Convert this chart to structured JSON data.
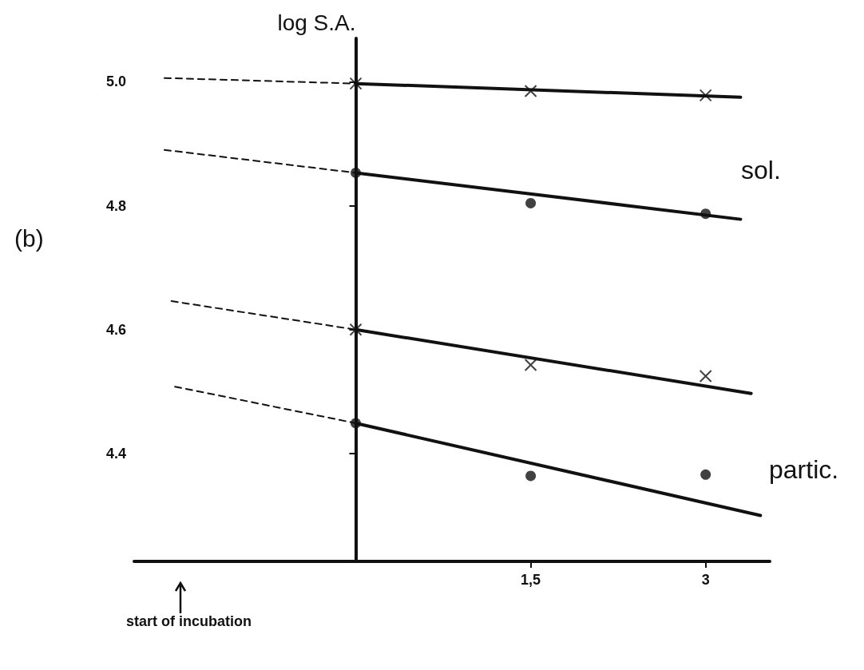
{
  "chart_data": {
    "type": "line",
    "ylabel": "log S.A.",
    "xlim": [
      -1.9,
      3.55
    ],
    "ylim": [
      4.226,
      5.07
    ],
    "xticks": [
      {
        "value": 1.5,
        "label": "1,5"
      },
      3
    ],
    "yticks": [
      4.4,
      4.6,
      4.8,
      {
        "value": 5,
        "label": "5.0"
      }
    ],
    "grid": false,
    "annotations": [
      "(b)",
      "sol.",
      "partic.",
      "start of incubation"
    ],
    "series": [
      {
        "type": "scatter",
        "marker": "cross",
        "color": "#111111",
        "x": [
          0,
          1.5,
          3
        ],
        "values": [
          4.997,
          4.985,
          4.978
        ]
      },
      {
        "marker": "none",
        "line_style": "solid",
        "color": "#111111",
        "x": [
          0,
          3.3
        ],
        "values": [
          4.997,
          4.975
        ]
      },
      {
        "marker": "none",
        "line_style": "dashed",
        "color": "#111111",
        "x": [
          -1.64,
          0
        ],
        "values": [
          5.006,
          4.997
        ]
      },
      {
        "type": "scatter",
        "marker": "circle",
        "color": "#111111",
        "x": [
          0,
          1.5,
          3
        ],
        "values": [
          4.853,
          4.804,
          4.787
        ]
      },
      {
        "marker": "none",
        "line_style": "solid",
        "color": "#111111",
        "x": [
          0,
          3.3
        ],
        "values": [
          4.853,
          4.778
        ]
      },
      {
        "marker": "none",
        "line_style": "dashed",
        "color": "#111111",
        "x": [
          -1.64,
          0
        ],
        "values": [
          4.89,
          4.853
        ]
      },
      {
        "type": "scatter",
        "marker": "cross",
        "color": "#111111",
        "x": [
          0,
          1.5,
          3
        ],
        "values": [
          4.6,
          4.543,
          4.525
        ]
      },
      {
        "marker": "none",
        "line_style": "solid",
        "color": "#111111",
        "x": [
          0,
          3.39
        ],
        "values": [
          4.6,
          4.497
        ]
      },
      {
        "marker": "none",
        "line_style": "dashed",
        "color": "#111111",
        "x": [
          -1.58,
          0
        ],
        "values": [
          4.646,
          4.6
        ]
      },
      {
        "type": "scatter",
        "marker": "circle",
        "color": "#111111",
        "x": [
          0,
          1.5,
          3
        ],
        "values": [
          4.449,
          4.364,
          4.366
        ]
      },
      {
        "marker": "none",
        "line_style": "solid",
        "color": "#111111",
        "x": [
          0,
          3.47
        ],
        "values": [
          4.449,
          4.3
        ]
      },
      {
        "marker": "none",
        "line_style": "dashed",
        "color": "#111111",
        "x": [
          -1.55,
          0
        ],
        "values": [
          4.508,
          4.449
        ]
      }
    ]
  }
}
